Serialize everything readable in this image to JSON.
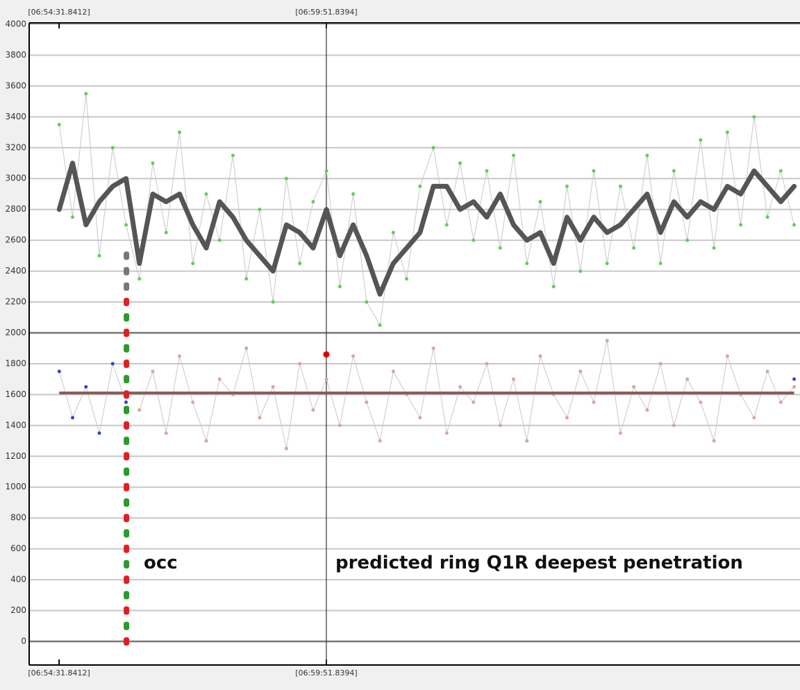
{
  "chart_data": {
    "type": "line",
    "x": [
      24872,
      24888,
      24904,
      24920,
      24936,
      24952,
      24968,
      24984,
      25000,
      25016,
      25032,
      25048,
      25064,
      25080,
      25096,
      25112,
      25128,
      25144,
      25160,
      25176,
      25192,
      25208,
      25224,
      25240,
      25256,
      25272,
      25288,
      25304,
      25320,
      25336,
      25352,
      25368,
      25384,
      25400,
      25416,
      25432,
      25448,
      25464,
      25480,
      25496,
      25512,
      25528,
      25544,
      25560,
      25576,
      25592,
      25608,
      25624,
      25640,
      25656,
      25672,
      25688,
      25704,
      25720,
      25736,
      25752
    ],
    "series": [
      {
        "style": "markers",
        "color": "#5ccf5c",
        "line_color": "#c8c8c8",
        "values": [
          3350,
          2750,
          3550,
          2500,
          3200,
          2700,
          2350,
          3100,
          2650,
          3300,
          2450,
          2900,
          2600,
          3150,
          2350,
          2800,
          2200,
          3000,
          2450,
          2850,
          3050,
          2300,
          2900,
          2200,
          2050,
          2650,
          2350,
          2950,
          3200,
          2700,
          3100,
          2600,
          3050,
          2550,
          3150,
          2450,
          2850,
          2300,
          2950,
          2400,
          3050,
          2450,
          2950,
          2550,
          3150,
          2450,
          3050,
          2600,
          3250,
          2550,
          3300,
          2700,
          3400,
          2750,
          3050,
          2700
        ]
      },
      {
        "style": "markers",
        "color": "#d6a898",
        "line_color": "#c8c8c8",
        "values": [
          null,
          null,
          null,
          null,
          null,
          null,
          1500,
          1750,
          1350,
          1850,
          1550,
          1300,
          1700,
          1600,
          1900,
          1450,
          1650,
          1250,
          1800,
          1500,
          1700,
          1400,
          1850,
          1550,
          1300,
          1750,
          1600,
          1450,
          1900,
          1350,
          1650,
          1550,
          1800,
          1400,
          1700,
          1300,
          1850,
          1600,
          1450,
          1750,
          1550,
          1950,
          1350,
          1650,
          1500,
          1800,
          1400,
          1700,
          1550,
          1300,
          1850,
          1600,
          1450,
          1750,
          1550,
          1650
        ]
      },
      {
        "style": "markers",
        "color": "#3344cc",
        "line_color": "#c8c8c8",
        "values": [
          1750,
          1450,
          1650,
          1350,
          1800,
          1550,
          null,
          null,
          null,
          null,
          null,
          null,
          null,
          null,
          null,
          null,
          null,
          null,
          null,
          null,
          null,
          null,
          null,
          null,
          null,
          null,
          null,
          null,
          null,
          null,
          null,
          null,
          null,
          null,
          null,
          null,
          null,
          null,
          null,
          null,
          null,
          null,
          null,
          null,
          null,
          null,
          null,
          null,
          null,
          null,
          null,
          null,
          null,
          null,
          null,
          1700
        ]
      },
      {
        "style": "thick",
        "color": "#555555",
        "values": [
          2800,
          3100,
          2700,
          2850,
          2950,
          3000,
          2450,
          2900,
          2850,
          2900,
          2700,
          2550,
          2850,
          2750,
          2600,
          2500,
          2400,
          2700,
          2650,
          2550,
          2800,
          2500,
          2700,
          2500,
          2250,
          2450,
          2550,
          2650,
          2950,
          2950,
          2800,
          2850,
          2750,
          2900,
          2700,
          2600,
          2650,
          2450,
          2750,
          2600,
          2750,
          2650,
          2700,
          2800,
          2900,
          2650,
          2850,
          2750,
          2850,
          2800,
          2950,
          2900,
          3050,
          2950,
          2850,
          2950
        ]
      }
    ],
    "reference_line": {
      "value": 1610,
      "color": "#8a5a55"
    },
    "occ_column": {
      "x": 24952.5,
      "values": [
        0,
        100,
        200,
        300,
        400,
        500,
        600,
        700,
        800,
        900,
        1000,
        1100,
        1200,
        1300,
        1400,
        1500,
        1600,
        1700,
        1800,
        1900,
        2000,
        2100,
        2200,
        2300,
        2400,
        2500
      ],
      "colors": [
        "#e02020",
        "#2a9a2a"
      ],
      "top_color": "#777777"
    },
    "event_point": {
      "x": 25191.8394,
      "y": 1860,
      "color": "#e00000"
    },
    "cursor_x": 25191.8394,
    "xlim": [
      24836,
      25759
    ],
    "xticks": [
      {
        "value": 24871.8412,
        "label": "[06:54:31.8412]"
      },
      {
        "value": 25191.8394,
        "label": "[06:59:51.8394]"
      }
    ],
    "ylim": [
      -153,
      4009
    ],
    "yticks": [
      0,
      200,
      400,
      600,
      800,
      1000,
      1200,
      1400,
      1600,
      1800,
      2000,
      2200,
      2400,
      2600,
      2800,
      3000,
      3200,
      3400,
      3600,
      3800,
      4000
    ],
    "grid": true,
    "emphasized_gridlines": [
      0,
      2000
    ],
    "annotations": [
      "occ",
      "predicted ring Q1R deepest penetration"
    ]
  }
}
